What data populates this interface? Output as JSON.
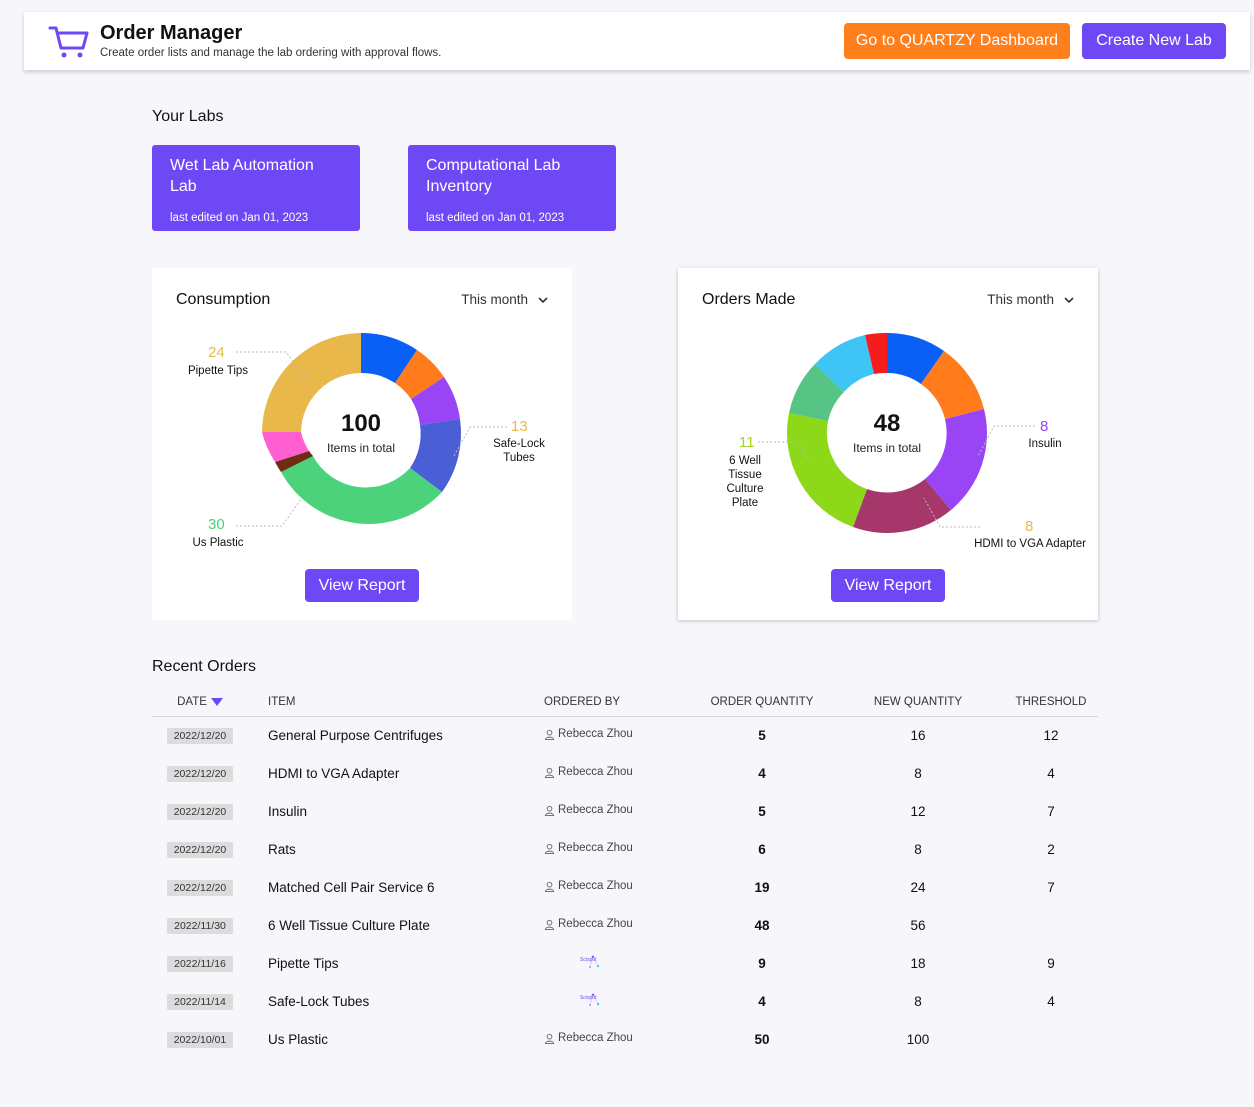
{
  "header": {
    "title": "Order Manager",
    "subtitle": "Create order lists and manage the lab ordering with approval flows.",
    "dashboard_btn": "Go to QUARTZY Dashboard",
    "create_btn": "Create New Lab",
    "colors": {
      "orange": "#ff7f1c",
      "purple": "#6e48f5"
    }
  },
  "labs": {
    "title": "Your Labs",
    "items": [
      {
        "name": "Wet Lab Automation Lab",
        "edited": "last edited on Jan 01, 2023"
      },
      {
        "name": "Computational Lab Inventory",
        "edited": "last edited on Jan 01, 2023"
      }
    ]
  },
  "consumption": {
    "title": "Consumption",
    "period": "This month",
    "total": "100",
    "total_label": "Items in total",
    "report_btn": "View Report",
    "callouts": [
      {
        "value": "24",
        "label": "Pipette Tips",
        "color": "#e8b84a"
      },
      {
        "value": "13",
        "label": "Safe-Lock Tubes",
        "color": "#e8b84a"
      },
      {
        "value": "30",
        "label": "Us Plastic",
        "color": "#4cd27a"
      }
    ]
  },
  "orders_made": {
    "title": "Orders Made",
    "period": "This month",
    "total": "48",
    "total_label": "Items in total",
    "report_btn": "View Report",
    "callouts": [
      {
        "value": "11",
        "label": "6 Well Tissue Culture Plate",
        "color": "#a6d41f"
      },
      {
        "value": "8",
        "label": "Insulin",
        "color": "#9b3ef5"
      },
      {
        "value": "8",
        "label": "HDMI to VGA Adapter",
        "color": "#e8b84a"
      }
    ]
  },
  "recent": {
    "title": "Recent Orders",
    "columns": [
      "DATE",
      "ITEM",
      "ORDERED BY",
      "ORDER QUANTITY",
      "NEW QUANTITY",
      "THRESHOLD"
    ],
    "rows": [
      {
        "date": "2022/12/20",
        "item": "General Purpose Centrifuges",
        "by": "Rebecca Zhou",
        "qty": "5",
        "new": "16",
        "thr": "12"
      },
      {
        "date": "2022/12/20",
        "item": "HDMI to VGA Adapter",
        "by": "Rebecca Zhou",
        "qty": "4",
        "new": "8",
        "thr": "4"
      },
      {
        "date": "2022/12/20",
        "item": "Insulin",
        "by": "Rebecca Zhou",
        "qty": "5",
        "new": "12",
        "thr": "7"
      },
      {
        "date": "2022/12/20",
        "item": "Rats",
        "by": "Rebecca Zhou",
        "qty": "6",
        "new": "8",
        "thr": "2"
      },
      {
        "date": "2022/12/20",
        "item": "Matched Cell Pair Service 6",
        "by": "Rebecca Zhou",
        "qty": "19",
        "new": "24",
        "thr": "7"
      },
      {
        "date": "2022/11/30",
        "item": "6 Well Tissue Culture Plate",
        "by": "Rebecca Zhou",
        "qty": "48",
        "new": "56",
        "thr": ""
      },
      {
        "date": "2022/11/16",
        "item": "Pipette Tips",
        "by": "Scispot",
        "qty": "9",
        "new": "18",
        "thr": "9"
      },
      {
        "date": "2022/11/14",
        "item": "Safe-Lock Tubes",
        "by": "Scispot",
        "qty": "4",
        "new": "8",
        "thr": "4"
      },
      {
        "date": "2022/10/01",
        "item": "Us Plastic",
        "by": "Rebecca Zhou",
        "qty": "50",
        "new": "100",
        "thr": ""
      }
    ]
  }
}
